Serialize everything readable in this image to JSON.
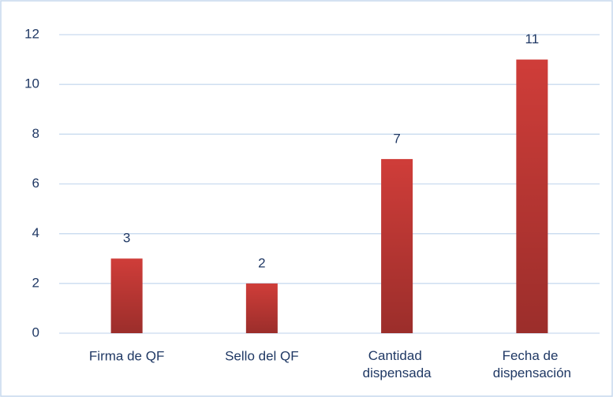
{
  "chart_data": {
    "type": "bar",
    "categories": [
      "Firma de QF",
      "Sello del QF",
      "Cantidad dispensada",
      "Fecha de dispensación"
    ],
    "values": [
      3,
      2,
      7,
      11
    ],
    "color": "#cf3d39",
    "ylim": [
      0,
      12
    ],
    "yticks": [
      0,
      2,
      4,
      6,
      8,
      10,
      12
    ],
    "grid": true
  }
}
